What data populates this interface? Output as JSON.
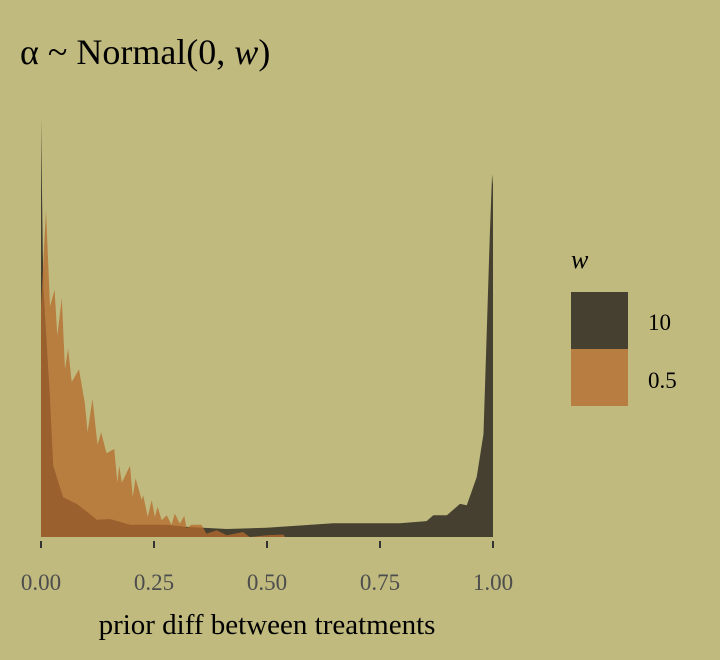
{
  "chart_data": {
    "type": "area",
    "title": {
      "prefix": "α ~ Normal(0, ",
      "variable": "w",
      "suffix": ")"
    },
    "xlabel": "prior diff between treatments",
    "ylabel": "",
    "xlim": [
      0,
      1
    ],
    "ylim": [
      0,
      1
    ],
    "x_ticks": [
      0,
      0.25,
      0.5,
      0.75,
      1
    ],
    "x_tick_labels": [
      "0.00",
      "0.25",
      "0.50",
      "0.75",
      "1.00"
    ],
    "y_ticks_shown": false,
    "grid": false,
    "legend": {
      "title": "w",
      "placement": "right",
      "entries": [
        "10",
        "0.5"
      ]
    },
    "colors": {
      "background": "#c0ba7f",
      "w10": "#454030",
      "w05": "#b66b2d",
      "tick_text": "#4d4d4d"
    },
    "series": [
      {
        "name": "10",
        "x": [
          0,
          0.005,
          0.02,
          0.027,
          0.049,
          0.079,
          0.108,
          0.123,
          0.153,
          0.197,
          0.278,
          0.322,
          0.411,
          0.499,
          0.647,
          0.794,
          0.853,
          0.868,
          0.898,
          0.927,
          0.942,
          0.964,
          0.979,
          0.986,
          0.993,
          0.998,
          1
        ],
        "y": [
          1.0,
          0.6,
          0.33,
          0.17,
          0.095,
          0.079,
          0.055,
          0.041,
          0.043,
          0.029,
          0.029,
          0.024,
          0.019,
          0.022,
          0.033,
          0.033,
          0.038,
          0.052,
          0.052,
          0.079,
          0.076,
          0.143,
          0.246,
          0.485,
          0.72,
          0.866,
          0.84
        ]
      },
      {
        "name": "0.5",
        "x": [
          0,
          0.011,
          0.02,
          0.03,
          0.036,
          0.046,
          0.053,
          0.06,
          0.068,
          0.084,
          0.097,
          0.103,
          0.114,
          0.125,
          0.133,
          0.145,
          0.162,
          0.169,
          0.173,
          0.179,
          0.197,
          0.203,
          0.209,
          0.223,
          0.226,
          0.236,
          0.245,
          0.252,
          0.258,
          0.267,
          0.278,
          0.289,
          0.296,
          0.307,
          0.317,
          0.322,
          0.333,
          0.355,
          0.366,
          0.389,
          0.411,
          0.447,
          0.462,
          0.499,
          0.536,
          0.54,
          1
        ],
        "y": [
          0.55,
          0.78,
          0.55,
          0.59,
          0.48,
          0.57,
          0.4,
          0.45,
          0.37,
          0.4,
          0.32,
          0.25,
          0.33,
          0.22,
          0.25,
          0.2,
          0.21,
          0.13,
          0.17,
          0.13,
          0.17,
          0.095,
          0.14,
          0.088,
          0.1,
          0.048,
          0.088,
          0.048,
          0.072,
          0.04,
          0.052,
          0.029,
          0.056,
          0.032,
          0.05,
          0.021,
          0.029,
          0.029,
          0.008,
          0.016,
          0.004,
          0.012,
          0,
          0.004,
          0.006,
          0,
          0
        ]
      }
    ]
  }
}
